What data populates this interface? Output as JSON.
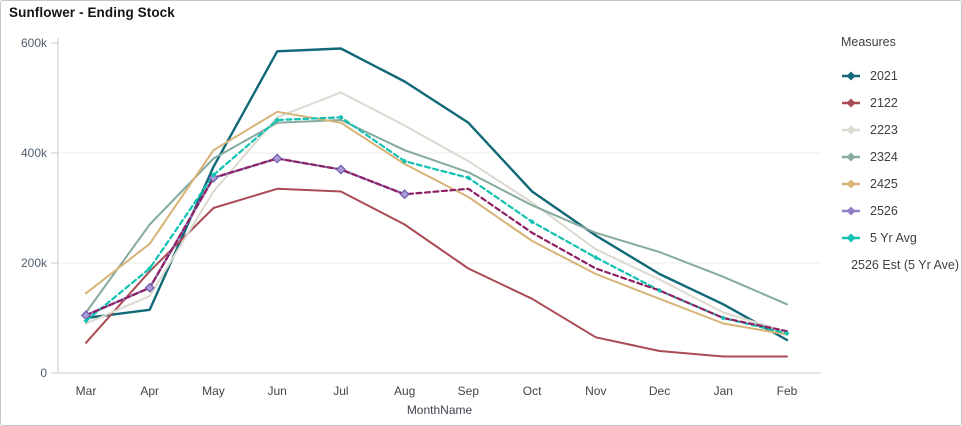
{
  "header": {
    "title": "Sunflower - Ending Stock"
  },
  "legend": {
    "title": "Measures",
    "items": [
      "2021",
      "2122",
      "2223",
      "2324",
      "2425",
      "2526",
      "5 Yr Avg",
      "2526 Est (5 Yr Ave)"
    ]
  },
  "colors": {
    "axis_line": "#c9c9c9",
    "gridline": "#ececec",
    "y_label": "#52606d",
    "x_label": "#40454d",
    "title_text": "#141414",
    "legend_text": "#404040"
  },
  "chart_data": {
    "type": "line",
    "title": "Sunflower - Ending Stock",
    "xlabel": "MonthName",
    "ylabel": "",
    "x": [
      "Mar",
      "Apr",
      "May",
      "Jun",
      "Jul",
      "Aug",
      "Sep",
      "Oct",
      "Nov",
      "Dec",
      "Jan",
      "Feb"
    ],
    "ylim": [
      0,
      600000
    ],
    "yticks": {
      "values": [
        0,
        200000,
        400000,
        600000
      ],
      "labels": [
        "0",
        "200k",
        "400k",
        "600k"
      ]
    },
    "grid": "horizontal",
    "legend_position": "right",
    "series": [
      {
        "name": "2021",
        "color": "#116879",
        "style": "solid",
        "width": 2.4,
        "marker": false,
        "values": [
          100000,
          115000,
          375000,
          585000,
          590000,
          530000,
          455000,
          330000,
          250000,
          180000,
          125000,
          60000
        ]
      },
      {
        "name": "2122",
        "color": "#a94a54",
        "style": "solid",
        "width": 2,
        "marker": false,
        "values": [
          55000,
          185000,
          300000,
          335000,
          330000,
          270000,
          190000,
          135000,
          65000,
          40000,
          30000,
          30000
        ]
      },
      {
        "name": "2223",
        "color": "#dcd9d0",
        "style": "solid",
        "width": 2,
        "marker": false,
        "values": [
          90000,
          140000,
          330000,
          465000,
          510000,
          450000,
          385000,
          310000,
          225000,
          170000,
          110000,
          75000
        ]
      },
      {
        "name": "2324",
        "color": "#86ab9e",
        "style": "solid",
        "width": 2,
        "marker": false,
        "values": [
          110000,
          270000,
          390000,
          455000,
          460000,
          405000,
          365000,
          305000,
          255000,
          220000,
          175000,
          125000
        ]
      },
      {
        "name": "2425",
        "color": "#d8b377",
        "style": "solid",
        "width": 2,
        "marker": false,
        "values": [
          145000,
          235000,
          405000,
          475000,
          455000,
          380000,
          320000,
          240000,
          180000,
          135000,
          90000,
          70000
        ]
      },
      {
        "name": "2526",
        "color": "#8f80c4",
        "style": "solid",
        "width": 2.4,
        "marker": "diamond-large",
        "values": [
          105000,
          155000,
          355000,
          390000,
          370000,
          325000,
          null,
          null,
          null,
          null,
          null,
          null
        ]
      },
      {
        "name": "5 Yr Avg",
        "color": "#12c1b2",
        "style": "dashed",
        "width": 2.2,
        "marker": "diamond-small",
        "values": [
          95000,
          190000,
          360000,
          460000,
          465000,
          385000,
          355000,
          275000,
          210000,
          150000,
          100000,
          72000
        ]
      },
      {
        "name": "2526 Est (5 Yr Ave)",
        "color": "#8e2063",
        "style": "dashed",
        "width": 2.2,
        "marker": false,
        "values": [
          105000,
          155000,
          355000,
          390000,
          370000,
          325000,
          335000,
          255000,
          190000,
          150000,
          100000,
          76000
        ]
      }
    ]
  }
}
